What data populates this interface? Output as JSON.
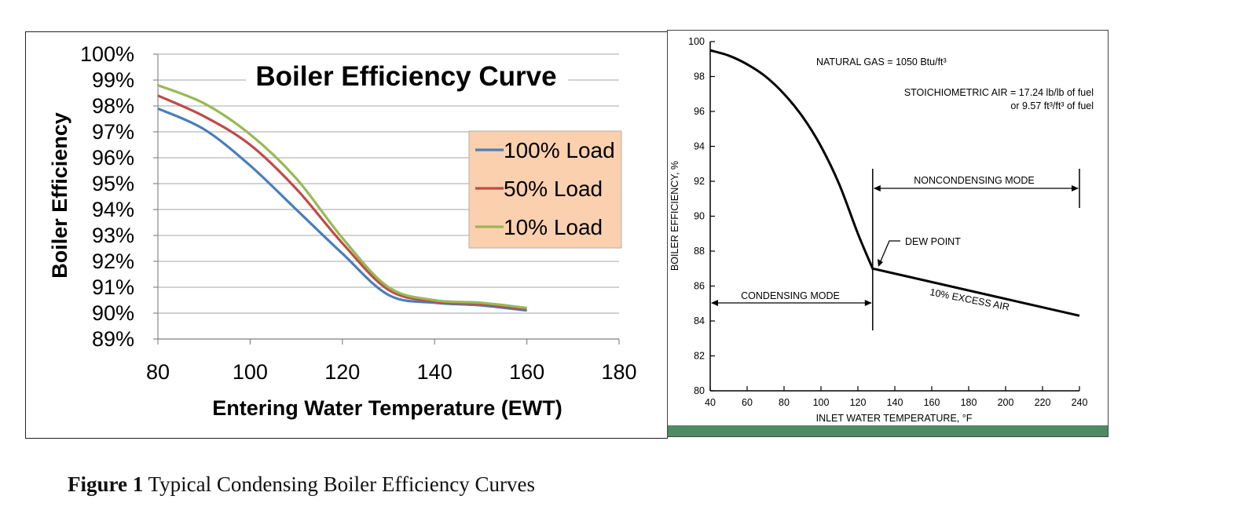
{
  "caption": {
    "bold": "Figure 1",
    "text": " Typical Condensing Boiler Efficiency Curves"
  },
  "chart_data": [
    {
      "type": "line",
      "title": "Boiler Efficiency Curve",
      "xlabel": "Entering Water Temperature (EWT)",
      "ylabel": "Boiler Efficiency",
      "xlim": [
        80,
        180
      ],
      "ylim": [
        89,
        100
      ],
      "x_ticks": [
        "80",
        "100",
        "120",
        "140",
        "160",
        "180"
      ],
      "y_ticks": [
        "89%",
        "90%",
        "91%",
        "92%",
        "93%",
        "94%",
        "95%",
        "96%",
        "97%",
        "98%",
        "99%",
        "100%"
      ],
      "grid": "horizontal",
      "legend_position": "right",
      "x": [
        80,
        90,
        100,
        110,
        120,
        130,
        140,
        150,
        160
      ],
      "series": [
        {
          "name": "100% Load",
          "color": "#4a7ebb",
          "values": [
            97.9,
            97.1,
            95.7,
            94.0,
            92.3,
            90.7,
            90.4,
            90.3,
            90.1
          ]
        },
        {
          "name": "50% Load",
          "color": "#be4b48",
          "values": [
            98.4,
            97.6,
            96.5,
            94.8,
            92.7,
            90.9,
            90.45,
            90.35,
            90.15
          ]
        },
        {
          "name": "10% Load",
          "color": "#98b954",
          "values": [
            98.8,
            98.1,
            96.9,
            95.2,
            92.9,
            91.0,
            90.5,
            90.4,
            90.2
          ]
        }
      ]
    },
    {
      "type": "line",
      "title": "",
      "xlabel": "INLET WATER TEMPERATURE, °F",
      "ylabel": "BOILER EFFICIENCY, %",
      "xlim": [
        40,
        240
      ],
      "ylim": [
        80,
        100
      ],
      "x_ticks": [
        "40",
        "60",
        "80",
        "100",
        "120",
        "140",
        "160",
        "180",
        "200",
        "220",
        "240"
      ],
      "y_ticks": [
        "80",
        "82",
        "84",
        "86",
        "88",
        "90",
        "92",
        "94",
        "96",
        "98",
        "100"
      ],
      "grid": "none",
      "x": [
        40,
        50,
        60,
        70,
        80,
        90,
        100,
        110,
        120,
        128,
        240
      ],
      "series": [
        {
          "name": "",
          "color": "#000000",
          "values": [
            99.5,
            99.2,
            98.7,
            98.0,
            97.0,
            95.7,
            94.0,
            91.8,
            89.0,
            87.0,
            84.3
          ]
        }
      ],
      "annotations": {
        "natural_gas": "NATURAL GAS = 1050 Btu/ft³",
        "stoich_1": "STOICHIOMETRIC AIR = 17.24 lb/lb of fuel",
        "stoich_2": "or 9.57 ft³/ft³ of fuel",
        "noncondensing": "NONCONDENSING MODE",
        "condensing": "CONDENSING MODE",
        "dew_point": "DEW POINT",
        "excess_air": "10% EXCESS AIR"
      }
    }
  ]
}
